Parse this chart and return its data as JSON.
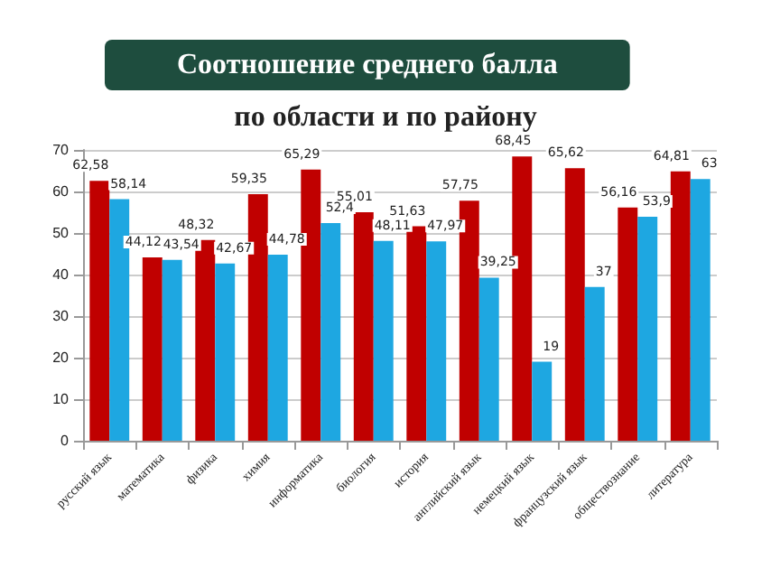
{
  "chart_data": {
    "type": "bar",
    "title": "Соотношение среднего балла",
    "subtitle": "по области и по району",
    "categories": [
      "русский язык",
      "математика",
      "физика",
      "химия",
      "информатика",
      "биология",
      "история",
      "английский язык",
      "немецкий язык",
      "французский язык",
      "обществознание",
      "литература"
    ],
    "series": [
      {
        "color": "#c00000",
        "values": [
          62.58,
          44.12,
          48.32,
          59.35,
          65.29,
          55.01,
          51.63,
          57.75,
          68.45,
          65.62,
          56.16,
          64.81
        ],
        "value_labels": [
          "62,58",
          "44,12",
          "48,32",
          "59,35",
          "65,29",
          "55,01",
          "51,63",
          "57,75",
          "68,45",
          "65,62",
          "56,16",
          "64,81"
        ]
      },
      {
        "color": "#1ea7e1",
        "values": [
          58.14,
          43.54,
          42.67,
          44.78,
          52.4,
          48.11,
          47.97,
          39.25,
          19,
          37,
          53.9,
          63
        ],
        "value_labels": [
          "58,14",
          "43,54",
          "42,67",
          "44,78",
          "52,4",
          "48,11",
          "47,97",
          "39,25",
          "19",
          "37",
          "53,9",
          "63"
        ]
      }
    ],
    "ylim": [
      0,
      70
    ],
    "yticks": [
      0,
      10,
      20,
      30,
      40,
      50,
      60,
      70
    ],
    "grid": "y"
  }
}
